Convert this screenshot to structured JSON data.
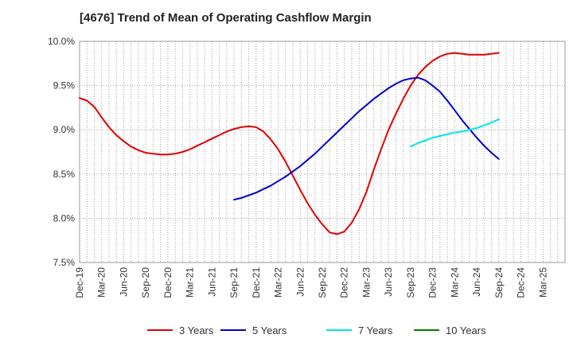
{
  "chart_data": {
    "type": "line",
    "title": "[4676]  Trend of Mean of Operating Cashflow Margin",
    "xlabel": "",
    "ylabel": "",
    "ylim": [
      7.5,
      10.0
    ],
    "y_ticks": [
      "10.0%",
      "9.5%",
      "9.0%",
      "8.5%",
      "8.0%",
      "7.5%"
    ],
    "x_tick_labels": [
      "Dec-19",
      "Mar-20",
      "Jun-20",
      "Sep-20",
      "Dec-20",
      "Mar-21",
      "Jun-21",
      "Sep-21",
      "Dec-21",
      "Mar-22",
      "Jun-22",
      "Sep-22",
      "Dec-22",
      "Mar-23",
      "Jun-23",
      "Sep-23",
      "Dec-23",
      "Mar-24",
      "Jun-24",
      "Sep-24",
      "Dec-24",
      "Mar-25"
    ],
    "x_start": "Dec-19",
    "grid": true,
    "legend_position": "bottom",
    "series": [
      {
        "name": "3 Years",
        "color": "#e00000",
        "x": [
          "Dec-19",
          "Jan-20",
          "Feb-20",
          "Mar-20",
          "Apr-20",
          "May-20",
          "Jun-20",
          "Jul-20",
          "Aug-20",
          "Sep-20",
          "Oct-20",
          "Nov-20",
          "Dec-20",
          "Jan-21",
          "Feb-21",
          "Mar-21",
          "Apr-21",
          "May-21",
          "Jun-21",
          "Jul-21",
          "Aug-21",
          "Sep-21",
          "Oct-21",
          "Nov-21",
          "Dec-21",
          "Jan-22",
          "Feb-22",
          "Mar-22",
          "Apr-22",
          "May-22",
          "Jun-22",
          "Jul-22",
          "Aug-22",
          "Sep-22",
          "Oct-22",
          "Nov-22",
          "Dec-22",
          "Jan-23",
          "Feb-23",
          "Mar-23",
          "Apr-23",
          "May-23",
          "Jun-23",
          "Jul-23",
          "Aug-23",
          "Sep-23",
          "Oct-23",
          "Nov-23",
          "Dec-23",
          "Jan-24",
          "Feb-24",
          "Mar-24",
          "Apr-24",
          "May-24",
          "Jun-24",
          "Jul-24",
          "Aug-24",
          "Sep-24"
        ],
        "values": [
          9.36,
          9.33,
          9.26,
          9.14,
          9.03,
          8.94,
          8.87,
          8.81,
          8.77,
          8.74,
          8.73,
          8.72,
          8.72,
          8.73,
          8.75,
          8.78,
          8.82,
          8.86,
          8.9,
          8.94,
          8.98,
          9.01,
          9.03,
          9.04,
          9.03,
          8.98,
          8.89,
          8.78,
          8.64,
          8.48,
          8.32,
          8.17,
          8.04,
          7.93,
          7.84,
          7.82,
          7.85,
          7.95,
          8.1,
          8.3,
          8.55,
          8.78,
          9.0,
          9.18,
          9.35,
          9.5,
          9.62,
          9.71,
          9.78,
          9.83,
          9.86,
          9.87,
          9.86,
          9.85,
          9.85,
          9.85,
          9.86,
          9.87
        ]
      },
      {
        "name": "5 Years",
        "color": "#0000cc",
        "x": [
          "Sep-21",
          "Oct-21",
          "Nov-21",
          "Dec-21",
          "Jan-22",
          "Feb-22",
          "Mar-22",
          "Apr-22",
          "May-22",
          "Jun-22",
          "Jul-22",
          "Aug-22",
          "Sep-22",
          "Oct-22",
          "Nov-22",
          "Dec-22",
          "Jan-23",
          "Feb-23",
          "Mar-23",
          "Apr-23",
          "May-23",
          "Jun-23",
          "Jul-23",
          "Aug-23",
          "Sep-23",
          "Oct-23",
          "Nov-23",
          "Dec-23",
          "Jan-24",
          "Feb-24",
          "Mar-24",
          "Apr-24",
          "May-24",
          "Jun-24",
          "Jul-24",
          "Aug-24",
          "Sep-24"
        ],
        "values": [
          8.21,
          8.23,
          8.26,
          8.29,
          8.33,
          8.37,
          8.42,
          8.47,
          8.53,
          8.59,
          8.66,
          8.73,
          8.81,
          8.89,
          8.97,
          9.05,
          9.13,
          9.21,
          9.28,
          9.35,
          9.41,
          9.47,
          9.52,
          9.56,
          9.58,
          9.59,
          9.56,
          9.5,
          9.43,
          9.33,
          9.22,
          9.11,
          9.01,
          8.91,
          8.82,
          8.74,
          8.67
        ]
      },
      {
        "name": "7 Years",
        "color": "#00e5e5",
        "x": [
          "Sep-23",
          "Oct-23",
          "Nov-23",
          "Dec-23",
          "Jan-24",
          "Feb-24",
          "Mar-24",
          "Apr-24",
          "May-24",
          "Jun-24",
          "Jul-24",
          "Aug-24",
          "Sep-24"
        ],
        "values": [
          8.81,
          8.85,
          8.88,
          8.91,
          8.93,
          8.95,
          8.97,
          8.98,
          9.0,
          9.02,
          9.05,
          9.08,
          9.12
        ]
      },
      {
        "name": "10 Years",
        "color": "#008000",
        "x": [],
        "values": []
      }
    ]
  }
}
